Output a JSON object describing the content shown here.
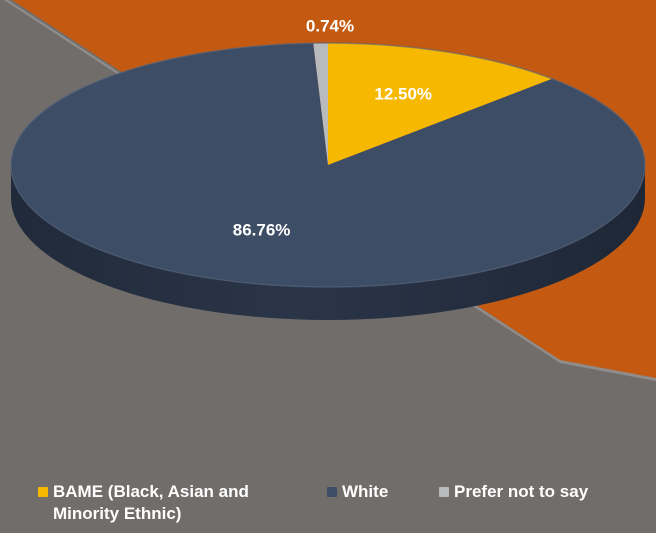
{
  "chart_data": {
    "type": "pie",
    "categories": [
      "BAME (Black, Asian and Minority Ethnic)",
      "White",
      "Prefer not to say"
    ],
    "values": [
      12.5,
      86.76,
      0.74
    ],
    "data_labels": [
      "12.50%",
      "86.76%",
      "0.74%"
    ],
    "colors": [
      "#f6b800",
      "#3e4d66",
      "#b9babc"
    ],
    "title": "",
    "legend_position": "bottom",
    "style": "3d"
  },
  "legend": {
    "items": [
      {
        "label": "BAME (Black, Asian and Minority Ethnic)",
        "color": "#f6b800"
      },
      {
        "label": "White",
        "color": "#3e4d66"
      },
      {
        "label": "Prefer not to say",
        "color": "#b9babc"
      }
    ]
  },
  "colors": {
    "background_gray": "#716d6b",
    "background_orange": "#c45a12",
    "pie_side": "#2a3548"
  }
}
